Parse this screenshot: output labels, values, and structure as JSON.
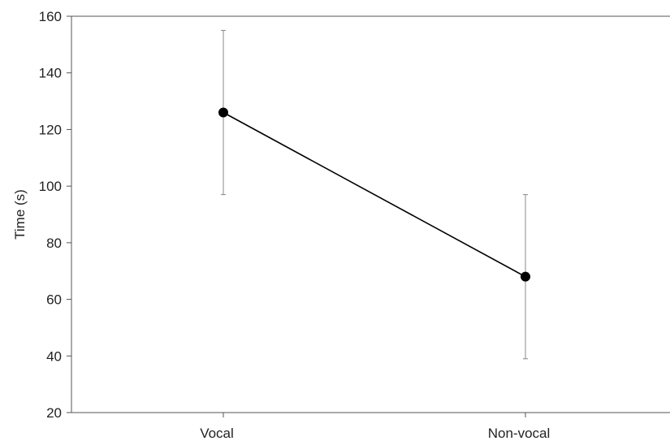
{
  "chart_data": {
    "type": "line",
    "title": "",
    "xlabel": "",
    "ylabel": "Time (s)",
    "ylim": [
      20,
      160
    ],
    "yticks": [
      20,
      40,
      60,
      80,
      100,
      120,
      140,
      160
    ],
    "categories": [
      "Vocal",
      "Non-vocal"
    ],
    "series": [
      {
        "values": [
          126,
          68
        ],
        "error_low": [
          97,
          39
        ],
        "error_high": [
          155,
          97
        ]
      }
    ],
    "grid": false,
    "legend": "none",
    "colors": {
      "line": "#000000",
      "marker": "#000000",
      "error_bar": "#888888",
      "axis": "#555555"
    }
  }
}
